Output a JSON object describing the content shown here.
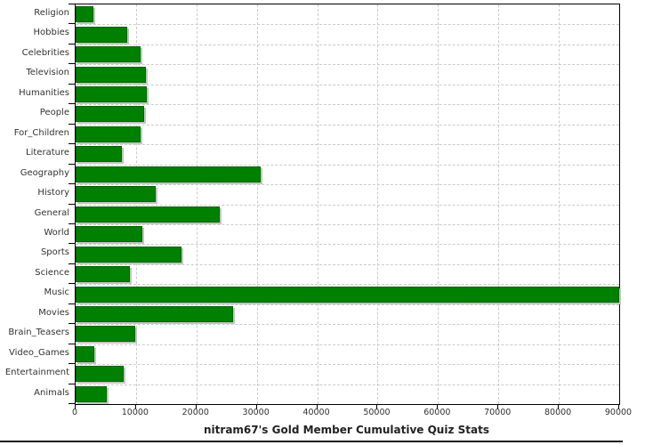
{
  "chart_data": {
    "type": "bar",
    "orientation": "horizontal",
    "title": "nitram67's Gold Member Cumulative Quiz Stats",
    "categories": [
      "Religion",
      "Hobbies",
      "Celebrities",
      "Television",
      "Humanities",
      "People",
      "For_Children",
      "Literature",
      "Geography",
      "History",
      "General",
      "World",
      "Sports",
      "Science",
      "Music",
      "Movies",
      "Brain_Teasers",
      "Video_Games",
      "Entertainment",
      "Animals"
    ],
    "values": [
      3000,
      8500,
      10800,
      11600,
      11800,
      11300,
      10800,
      7700,
      30600,
      13300,
      23800,
      11100,
      17500,
      9000,
      90000,
      26100,
      9800,
      3100,
      8000,
      5100
    ],
    "xlim": [
      0,
      90000
    ],
    "x_ticks": [
      0,
      10000,
      20000,
      30000,
      40000,
      50000,
      60000,
      70000,
      80000,
      90000
    ],
    "grid": "dashed",
    "legend": "none",
    "colors": {
      "bar_fill": "#008000",
      "bar_edge": "#006400",
      "bar_shadow": "#c4c4c4",
      "grid_line": "#cccccc",
      "axis_line": "#000000",
      "tick_label": "#333333",
      "title_text": "#222222"
    }
  }
}
